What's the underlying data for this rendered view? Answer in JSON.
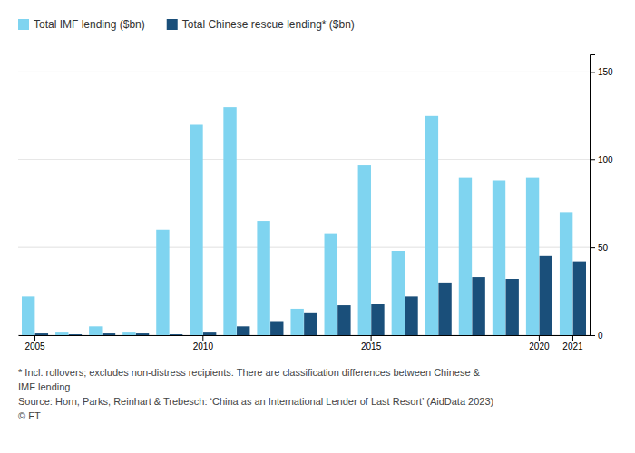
{
  "chart_data": {
    "type": "bar",
    "categories": [
      "2005",
      null,
      null,
      null,
      null,
      "2010",
      null,
      null,
      null,
      null,
      "2015",
      null,
      null,
      null,
      null,
      "2020",
      "2021"
    ],
    "series": [
      {
        "name": "Total IMF lending ($bn)",
        "color": "#7fd4f0",
        "values": [
          22,
          2,
          5,
          2,
          60,
          120,
          130,
          65,
          15,
          58,
          97,
          48,
          125,
          90,
          88,
          90,
          70
        ]
      },
      {
        "name": "Total Chinese rescue lending* ($bn)",
        "color": "#1a4f7a",
        "values": [
          1,
          0.5,
          1,
          1,
          0.5,
          2,
          5,
          8,
          13,
          17,
          18,
          22,
          30,
          33,
          32,
          45,
          42
        ]
      }
    ],
    "ylim": [
      0,
      160
    ],
    "yticks": [
      0,
      50,
      100,
      150
    ],
    "grid": true,
    "legend": "upper left",
    "annotations": [
      "* Incl. rollovers; excludes non-distress recipients. There are classification differences between Chinese &",
      "IMF lending",
      "Source: Horn, Parks, Reinhart & Trebesch: ‘China as an International Lender of Last Resort’ (AidData 2023)",
      "© FT"
    ]
  }
}
